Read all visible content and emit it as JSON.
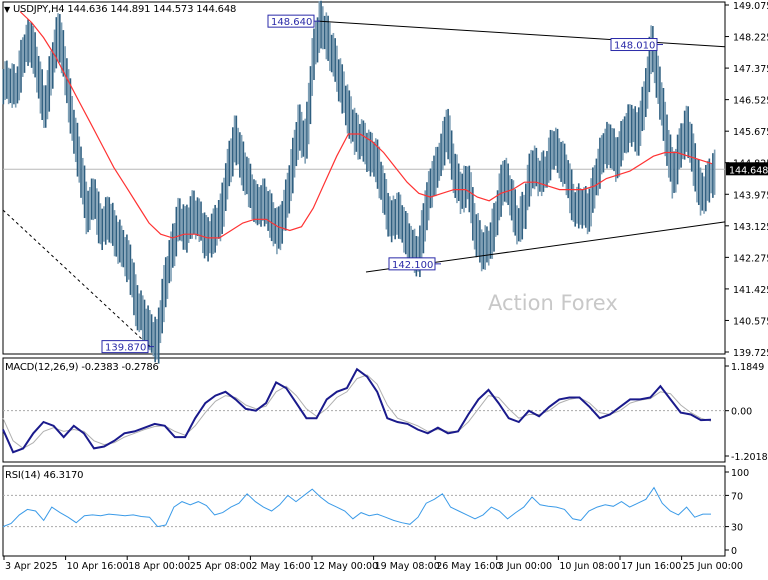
{
  "chart_data": [
    {
      "type": "ohlc-bar",
      "panel": "price",
      "title": "USDJPY,H4",
      "ohlc_current": {
        "open": 144.636,
        "high": 144.891,
        "low": 144.573,
        "close": 144.648
      },
      "header_text": "USDJPY,H4  144.636 144.891 144.573 144.648",
      "current_price_label": "144.648",
      "ylim": [
        139.725,
        149.075
      ],
      "yticks": [
        "149.075",
        "148.225",
        "147.375",
        "146.525",
        "145.675",
        "144.825",
        "143.975",
        "143.125",
        "142.275",
        "141.425",
        "140.575",
        "139.725"
      ],
      "xticks": [
        "3 Apr 2025",
        "10 Apr 16:00",
        "18 Apr 00:00",
        "25 Apr 08:00",
        "2 May 16:00",
        "12 May 00:00",
        "19 May 08:00",
        "26 May 16:00",
        "3 Jun 00:00",
        "10 Jun 08:00",
        "17 Jun 16:00",
        "25 Jun 00:00"
      ],
      "annotations": [
        {
          "label": "148.640",
          "kind": "swing-high"
        },
        {
          "label": "148.010",
          "kind": "swing-high"
        },
        {
          "label": "142.100",
          "kind": "swing-low"
        },
        {
          "label": "139.870",
          "kind": "swing-low"
        }
      ],
      "trendlines": [
        {
          "name": "upper-resistance",
          "from": 148.64,
          "to": 148.01,
          "style": "solid"
        },
        {
          "name": "lower-support",
          "from": 142.1,
          "style": "solid"
        },
        {
          "name": "falling-support",
          "to": 139.87,
          "style": "dashed"
        }
      ],
      "series_close_approx": [
        147.0,
        146.8,
        147.8,
        148.2,
        147.3,
        146.2,
        147.4,
        148.4,
        147.2,
        145.8,
        144.8,
        143.5,
        143.9,
        143.0,
        143.4,
        142.9,
        142.5,
        142.1,
        141.0,
        140.6,
        140.2,
        140.0,
        141.5,
        142.4,
        143.3,
        143.0,
        143.5,
        143.2,
        142.7,
        143.0,
        143.4,
        144.6,
        145.5,
        144.8,
        144.2,
        143.6,
        143.8,
        143.4,
        142.9,
        143.5,
        144.6,
        145.8,
        145.3,
        147.6,
        148.6,
        148.2,
        147.6,
        146.9,
        146.2,
        145.6,
        145.4,
        145.1,
        144.9,
        144.0,
        143.2,
        143.5,
        143.0,
        142.5,
        142.3,
        143.6,
        144.4,
        144.9,
        145.8,
        144.6,
        144.0,
        144.3,
        143.0,
        142.5,
        142.6,
        143.4,
        144.5,
        144.0,
        143.1,
        143.6,
        144.8,
        144.5,
        144.6,
        145.3,
        145.0,
        144.5,
        143.6,
        143.7,
        143.5,
        144.3,
        145.1,
        145.4,
        144.9,
        145.5,
        145.9,
        145.6,
        146.5,
        148.0,
        146.9,
        145.6,
        144.4,
        145.2,
        145.8,
        144.8,
        143.9,
        144.3,
        144.6
      ],
      "ma_approx": [
        148.9,
        148.6,
        148.2,
        147.7,
        147.1,
        146.5,
        145.9,
        145.3,
        144.7,
        144.2,
        143.7,
        143.2,
        142.9,
        142.8,
        142.9,
        142.9,
        142.8,
        142.8,
        143.0,
        143.2,
        143.3,
        143.3,
        143.1,
        143.0,
        143.1,
        143.6,
        144.3,
        145.0,
        145.6,
        145.6,
        145.4,
        145.1,
        144.7,
        144.3,
        144.0,
        143.9,
        144.0,
        144.1,
        144.1,
        143.9,
        143.8,
        144.0,
        144.1,
        144.3,
        144.3,
        144.2,
        144.1,
        144.1,
        144.1,
        144.2,
        144.4,
        144.5,
        144.6,
        144.8,
        145.0,
        145.1,
        145.1,
        145.0,
        144.9,
        144.8
      ],
      "ma_color": "#ff3333",
      "bar_color": "#5b86a0"
    },
    {
      "type": "line",
      "panel": "macd",
      "title": "MACD(12,26,9) -0.2383 -0.2786",
      "params": "12,26,9",
      "values_current": {
        "macd": -0.2383,
        "signal": -0.2786
      },
      "ylim": [
        -1.2018,
        1.1849
      ],
      "yticks": [
        "1.1849",
        "0.00",
        "-1.2018"
      ],
      "series": [
        {
          "name": "MACD",
          "color": "#1a1a8c",
          "values": [
            -0.5,
            -1.1,
            -1.0,
            -0.6,
            -0.3,
            -0.4,
            -0.7,
            -0.4,
            -0.6,
            -1.0,
            -0.95,
            -0.8,
            -0.6,
            -0.55,
            -0.45,
            -0.35,
            -0.4,
            -0.7,
            -0.7,
            -0.2,
            0.2,
            0.4,
            0.5,
            0.3,
            0.05,
            0.0,
            0.2,
            0.75,
            0.6,
            0.2,
            -0.2,
            -0.2,
            0.3,
            0.5,
            0.6,
            1.1,
            0.9,
            0.5,
            -0.2,
            -0.3,
            -0.35,
            -0.5,
            -0.6,
            -0.45,
            -0.6,
            -0.55,
            -0.1,
            0.3,
            0.55,
            0.2,
            -0.2,
            -0.3,
            -0.0,
            -0.15,
            0.1,
            0.3,
            0.35,
            0.35,
            0.1,
            -0.2,
            -0.1,
            0.1,
            0.3,
            0.3,
            0.35,
            0.65,
            0.3,
            -0.05,
            -0.1,
            -0.25,
            -0.24
          ]
        },
        {
          "name": "Signal",
          "color": "#b0b0b0",
          "values": [
            -0.2,
            -0.8,
            -1.0,
            -0.85,
            -0.55,
            -0.45,
            -0.55,
            -0.5,
            -0.55,
            -0.8,
            -0.9,
            -0.85,
            -0.7,
            -0.6,
            -0.5,
            -0.42,
            -0.4,
            -0.55,
            -0.65,
            -0.4,
            -0.05,
            0.25,
            0.4,
            0.35,
            0.15,
            0.05,
            0.12,
            0.5,
            0.65,
            0.4,
            0.05,
            -0.15,
            0.05,
            0.35,
            0.5,
            0.85,
            0.95,
            0.7,
            0.15,
            -0.2,
            -0.3,
            -0.4,
            -0.55,
            -0.5,
            -0.55,
            -0.55,
            -0.3,
            0.05,
            0.4,
            0.35,
            0.05,
            -0.2,
            -0.1,
            -0.1,
            0.0,
            0.2,
            0.3,
            0.35,
            0.2,
            -0.05,
            -0.1,
            0.0,
            0.2,
            0.28,
            0.32,
            0.5,
            0.45,
            0.15,
            -0.05,
            -0.2,
            -0.28
          ]
        }
      ]
    },
    {
      "type": "line",
      "panel": "rsi",
      "title": "RSI(14) 46.3170",
      "params": "14",
      "value_current": 46.317,
      "ylim": [
        0,
        100
      ],
      "yticks": [
        "100",
        "70",
        "30",
        "0"
      ],
      "levels": [
        70,
        30
      ],
      "series": [
        {
          "name": "RSI",
          "color": "#3b9be8",
          "values": [
            30,
            34,
            45,
            52,
            50,
            38,
            55,
            48,
            42,
            35,
            44,
            45,
            44,
            46,
            45,
            44,
            45,
            43,
            42,
            30,
            32,
            55,
            62,
            58,
            62,
            57,
            45,
            48,
            55,
            60,
            72,
            62,
            55,
            50,
            58,
            70,
            62,
            70,
            78,
            68,
            60,
            55,
            50,
            40,
            48,
            44,
            46,
            42,
            38,
            35,
            33,
            42,
            60,
            65,
            72,
            55,
            50,
            45,
            40,
            45,
            55,
            50,
            40,
            48,
            55,
            68,
            58,
            56,
            55,
            52,
            40,
            38,
            50,
            55,
            58,
            56,
            62,
            55,
            60,
            65,
            80,
            60,
            50,
            45,
            55,
            42,
            46,
            46
          ]
        }
      ]
    }
  ],
  "watermark": "Action Forex",
  "labels": {
    "header": "USDJPY,H4  144.636 144.891 144.573 144.648",
    "macd_header": "MACD(12,26,9) -0.2383 -0.2786",
    "rsi_header": "RSI(14) 46.3170",
    "price_tag": "144.648"
  }
}
